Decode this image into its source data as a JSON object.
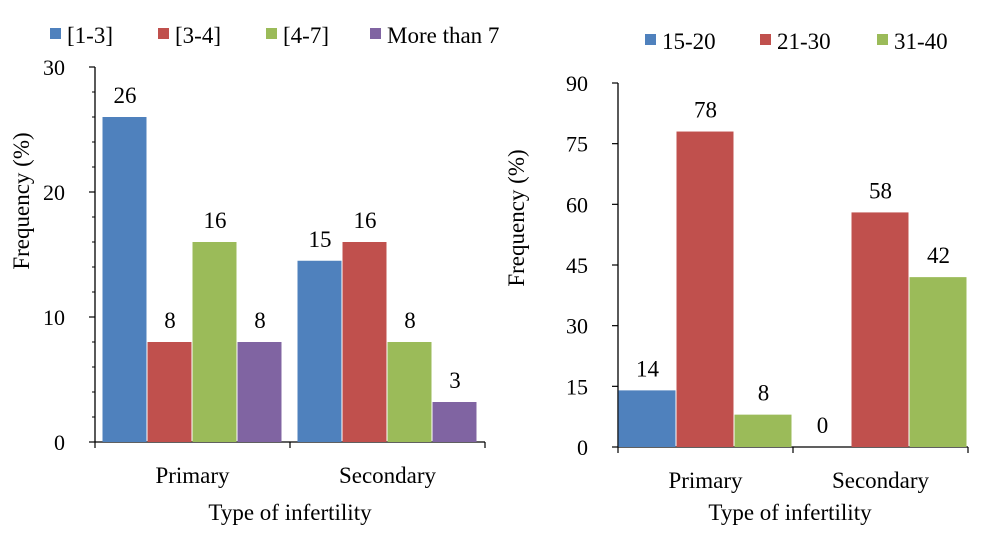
{
  "chart_data": [
    {
      "type": "bar",
      "categories": [
        "Primary",
        "Secondary"
      ],
      "series": [
        {
          "name": "[1-3]",
          "color": "#4F81BD",
          "values": [
            26,
            14.5
          ],
          "labels": [
            "26",
            "15"
          ]
        },
        {
          "name": "[3-4]",
          "color": "#C0504D",
          "values": [
            8,
            16
          ],
          "labels": [
            "8",
            "16"
          ]
        },
        {
          "name": "[4-7]",
          "color": "#9BBB59",
          "values": [
            16,
            8
          ],
          "labels": [
            "16",
            "8"
          ]
        },
        {
          "name": "More than 7",
          "color": "#8064A2",
          "values": [
            8,
            3.2
          ],
          "labels": [
            "8",
            "3"
          ]
        }
      ],
      "xlabel": "Type of infertility",
      "ylabel": "Frequency (%)",
      "ylim": [
        0,
        30
      ],
      "yticks": [
        "0",
        "10",
        "20",
        "30"
      ],
      "grid": false,
      "legend": "top"
    },
    {
      "type": "bar",
      "categories": [
        "Primary",
        "Secondary"
      ],
      "series": [
        {
          "name": "15-20",
          "color": "#4F81BD",
          "values": [
            14,
            0
          ],
          "labels": [
            "14",
            "0"
          ]
        },
        {
          "name": "21-30",
          "color": "#C0504D",
          "values": [
            78,
            58
          ],
          "labels": [
            "78",
            "58"
          ]
        },
        {
          "name": "31-40",
          "color": "#9BBB59",
          "values": [
            8,
            42
          ],
          "labels": [
            "8",
            "42"
          ]
        }
      ],
      "xlabel": "Type of infertility",
      "ylabel": "Frequency (%)",
      "ylim": [
        0,
        90
      ],
      "yticks": [
        "0",
        "15",
        "30",
        "45",
        "60",
        "75",
        "90"
      ],
      "grid": false,
      "legend": "top"
    }
  ]
}
